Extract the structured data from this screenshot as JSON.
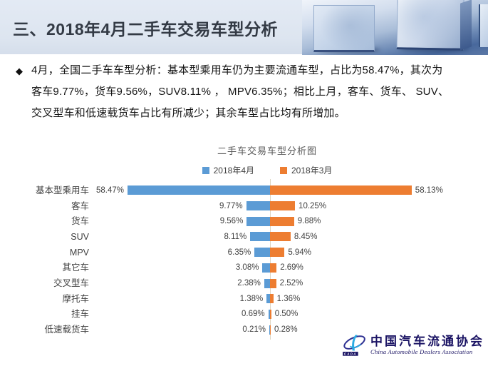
{
  "slide": {
    "title": "三、2018年4月二手车交易车型分析",
    "bullet_diamond": "◆",
    "bullet_lines": [
      "4月，全国二手车车型分析：基本型乘用车仍为主要流通车型，占比为58.47%，其次为",
      "客车9.77%，货车9.56%，SUV8.11% ， MPV6.35%；相比上月，客车、货车、 SUV、",
      "交叉型车和低速载货车占比有所减少；其余车型占比均有所增加。"
    ]
  },
  "chart_data": {
    "type": "bar",
    "variant": "tornado",
    "title": "二手车交易车型分析图",
    "categories": [
      "基本型乘用车",
      "客车",
      "货车",
      "SUV",
      "MPV",
      "其它车",
      "交叉型车",
      "摩托车",
      "挂车",
      "低速载货车"
    ],
    "series": [
      {
        "name": "2018年4月",
        "side": "left",
        "color": "#5B9BD5",
        "values": [
          58.47,
          9.77,
          9.56,
          8.11,
          6.35,
          3.08,
          2.38,
          1.38,
          0.69,
          0.21
        ]
      },
      {
        "name": "2018年3月",
        "side": "right",
        "color": "#ED7D31",
        "values": [
          58.13,
          10.25,
          9.88,
          8.45,
          5.94,
          2.69,
          2.52,
          1.36,
          0.5,
          0.28
        ]
      }
    ],
    "value_suffix": "%",
    "xlabel": "",
    "ylabel": "",
    "axis": {
      "center_value": 0,
      "max_percent": 60,
      "gridlines": false
    },
    "legend_position": "top-center",
    "data_labels": true
  },
  "colors": {
    "header_band": "#dde5f0",
    "title_text": "#333a45",
    "april_blue": "#5B9BD5",
    "march_orange": "#ED7D31",
    "axis_line": "#ddd5c2",
    "logo_navy": "#1b1464",
    "logo_lightblue": "#29abe2"
  },
  "logo": {
    "cn_name": "中国汽车流通协会",
    "en_name": "China Automobile Dealers Association",
    "abbr": "CADA"
  }
}
